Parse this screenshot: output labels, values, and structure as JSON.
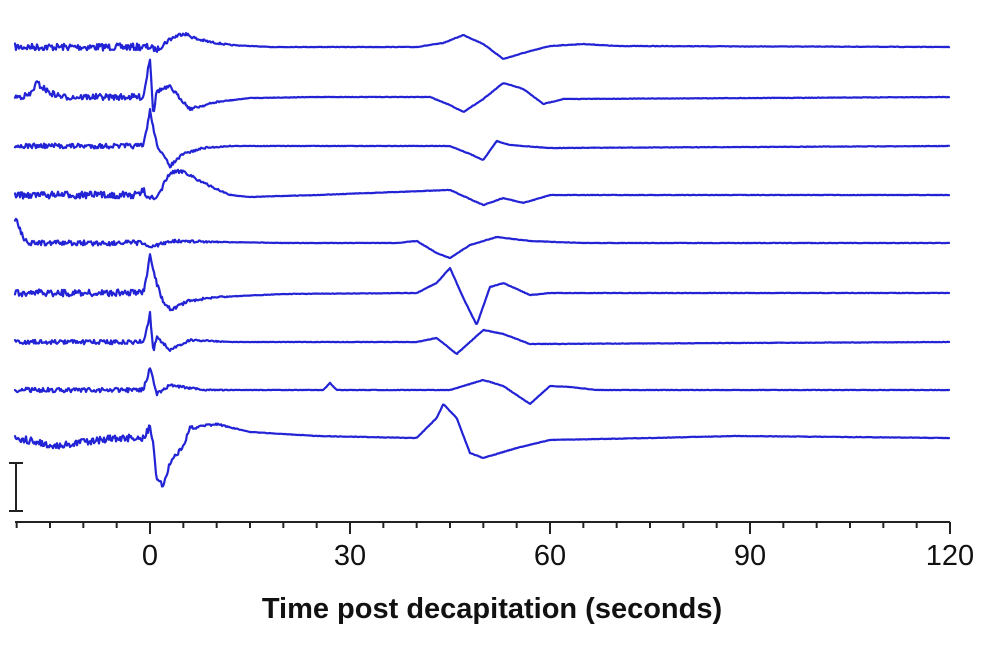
{
  "chart_data": {
    "type": "line",
    "title": "",
    "xlabel": "Time post decapitation (seconds)",
    "ylabel": "",
    "xlim": [
      -20,
      120
    ],
    "xticks": [
      0,
      30,
      60,
      90,
      120
    ],
    "x_minor_tick_step": 5,
    "grid": false,
    "legend": "none",
    "colors": {
      "trace": "#2323d6",
      "axis": "#222222"
    },
    "scale_bar": {
      "label": ""
    },
    "series": [
      {
        "wave": [
          [
            -20,
            0
          ],
          [
            -5,
            0
          ],
          [
            0,
            0
          ],
          [
            1,
            3
          ],
          [
            3,
            -8
          ],
          [
            5,
            -14
          ],
          [
            7,
            -8
          ],
          [
            9,
            -5
          ],
          [
            12,
            -2
          ],
          [
            18,
            0
          ],
          [
            40,
            0
          ],
          [
            44,
            -4
          ],
          [
            47,
            -12
          ],
          [
            50,
            -3
          ],
          [
            53,
            12
          ],
          [
            56,
            6
          ],
          [
            60,
            -1
          ],
          [
            65,
            -3
          ],
          [
            70,
            -1
          ],
          [
            120,
            0
          ]
        ]
      },
      {
        "wave": [
          [
            -20,
            0
          ],
          [
            -18,
            -2
          ],
          [
            -17,
            -14
          ],
          [
            -15,
            -4
          ],
          [
            -13,
            0
          ],
          [
            -1,
            0
          ],
          [
            0,
            -40
          ],
          [
            0.5,
            18
          ],
          [
            1,
            -6
          ],
          [
            3,
            -10
          ],
          [
            6,
            12
          ],
          [
            10,
            5
          ],
          [
            15,
            1
          ],
          [
            25,
            0
          ],
          [
            42,
            0
          ],
          [
            45,
            8
          ],
          [
            47,
            15
          ],
          [
            50,
            2
          ],
          [
            53,
            -14
          ],
          [
            56,
            -8
          ],
          [
            59,
            7
          ],
          [
            62,
            2
          ],
          [
            120,
            0
          ]
        ]
      },
      {
        "wave": [
          [
            -20,
            0
          ],
          [
            -1,
            0
          ],
          [
            0,
            -35
          ],
          [
            1,
            -2
          ],
          [
            2,
            10
          ],
          [
            3,
            20
          ],
          [
            5,
            8
          ],
          [
            8,
            2
          ],
          [
            12,
            0
          ],
          [
            45,
            0
          ],
          [
            48,
            8
          ],
          [
            50,
            14
          ],
          [
            52,
            -5
          ],
          [
            54,
            -1
          ],
          [
            60,
            2
          ],
          [
            120,
            0
          ]
        ]
      },
      {
        "wave": [
          [
            -20,
            0
          ],
          [
            -2,
            0
          ],
          [
            -1,
            -4
          ],
          [
            0,
            2
          ],
          [
            1,
            5
          ],
          [
            2,
            -10
          ],
          [
            3,
            -22
          ],
          [
            5,
            -24
          ],
          [
            8,
            -12
          ],
          [
            12,
            0
          ],
          [
            15,
            2
          ],
          [
            25,
            0
          ],
          [
            45,
            -5
          ],
          [
            50,
            10
          ],
          [
            53,
            3
          ],
          [
            56,
            8
          ],
          [
            60,
            0
          ],
          [
            120,
            0
          ]
        ]
      },
      {
        "wave": [
          [
            -20,
            -22
          ],
          [
            -19,
            -5
          ],
          [
            -18,
            0
          ],
          [
            -1,
            0
          ],
          [
            0,
            5
          ],
          [
            3,
            -2
          ],
          [
            20,
            0
          ],
          [
            37,
            0
          ],
          [
            40,
            -2
          ],
          [
            43,
            10
          ],
          [
            45,
            15
          ],
          [
            48,
            2
          ],
          [
            52,
            -6
          ],
          [
            57,
            -2
          ],
          [
            65,
            0
          ],
          [
            120,
            0
          ]
        ]
      },
      {
        "wave": [
          [
            -20,
            0
          ],
          [
            -1,
            0
          ],
          [
            0,
            -36
          ],
          [
            1,
            -10
          ],
          [
            2,
            10
          ],
          [
            3,
            16
          ],
          [
            6,
            8
          ],
          [
            10,
            4
          ],
          [
            20,
            1
          ],
          [
            40,
            0
          ],
          [
            43,
            -10
          ],
          [
            45,
            -25
          ],
          [
            47,
            5
          ],
          [
            49,
            32
          ],
          [
            51,
            -6
          ],
          [
            53,
            -10
          ],
          [
            57,
            2
          ],
          [
            60,
            0
          ],
          [
            120,
            0
          ]
        ]
      },
      {
        "wave": [
          [
            -20,
            0
          ],
          [
            -1,
            0
          ],
          [
            0,
            -28
          ],
          [
            0.5,
            10
          ],
          [
            1,
            -5
          ],
          [
            3,
            8
          ],
          [
            6,
            -2
          ],
          [
            12,
            0
          ],
          [
            40,
            0
          ],
          [
            43,
            -4
          ],
          [
            46,
            12
          ],
          [
            50,
            -12
          ],
          [
            53,
            -8
          ],
          [
            57,
            2
          ],
          [
            120,
            0
          ]
        ]
      },
      {
        "wave": [
          [
            -20,
            0
          ],
          [
            -1,
            0
          ],
          [
            0,
            -22
          ],
          [
            1,
            4
          ],
          [
            3,
            -5
          ],
          [
            5,
            -3
          ],
          [
            8,
            0
          ],
          [
            26,
            0
          ],
          [
            27,
            -7
          ],
          [
            28,
            0
          ],
          [
            45,
            0
          ],
          [
            50,
            -10
          ],
          [
            53,
            -4
          ],
          [
            57,
            14
          ],
          [
            60,
            -4
          ],
          [
            63,
            -3
          ],
          [
            67,
            0
          ],
          [
            120,
            0
          ]
        ]
      },
      {
        "wave": [
          [
            -20,
            0
          ],
          [
            -17,
            4
          ],
          [
            -15,
            8
          ],
          [
            -10,
            4
          ],
          [
            -5,
            0
          ],
          [
            -1,
            0
          ],
          [
            0,
            -12
          ],
          [
            0.5,
            8
          ],
          [
            1,
            40
          ],
          [
            2,
            48
          ],
          [
            3,
            25
          ],
          [
            5,
            8
          ],
          [
            6,
            -10
          ],
          [
            10,
            -14
          ],
          [
            15,
            -6
          ],
          [
            25,
            -2
          ],
          [
            40,
            0
          ],
          [
            43,
            -20
          ],
          [
            44,
            -34
          ],
          [
            46,
            -20
          ],
          [
            48,
            15
          ],
          [
            50,
            20
          ],
          [
            55,
            10
          ],
          [
            60,
            2
          ],
          [
            75,
            0
          ],
          [
            88,
            -2
          ],
          [
            120,
            0
          ]
        ]
      }
    ]
  }
}
